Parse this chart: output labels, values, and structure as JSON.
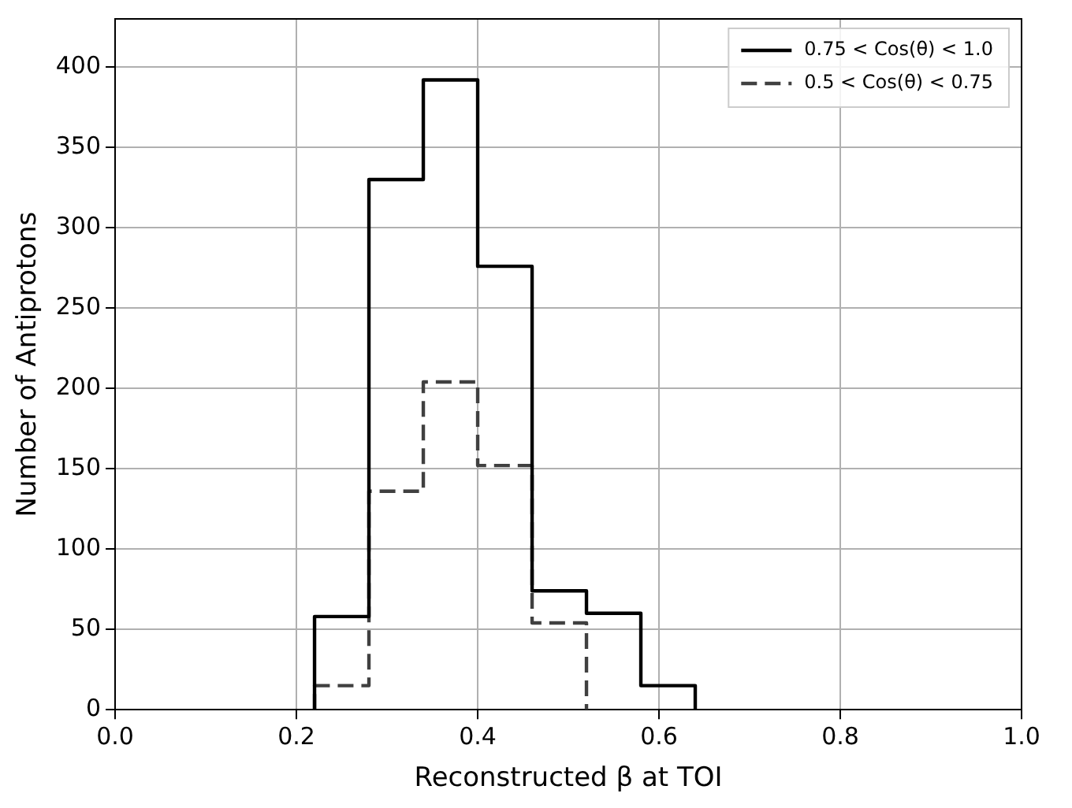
{
  "chart_data": {
    "type": "histogram",
    "xlabel": "Reconstructed β at TOI",
    "ylabel": "Number of Antiprotons",
    "bins": [
      0.22,
      0.28,
      0.34,
      0.4,
      0.46,
      0.52,
      0.58,
      0.64
    ],
    "series": [
      {
        "name": "0.75 < Cos(θ) < 1.0",
        "color": "#000000",
        "line_style": "solid",
        "values": [
          58,
          330,
          392,
          276,
          74,
          60,
          15
        ]
      },
      {
        "name": "0.5 < Cos(θ) < 0.75",
        "color": "#404040",
        "line_style": "dashed",
        "bins": [
          0.22,
          0.28,
          0.34,
          0.4,
          0.46,
          0.52
        ],
        "values": [
          15,
          136,
          204,
          152,
          54
        ]
      }
    ],
    "xlim": [
      0,
      1
    ],
    "xticks": [
      {
        "value": 0,
        "label": "0.0"
      },
      {
        "value": 0.2,
        "label": "0.2"
      },
      {
        "value": 0.4,
        "label": "0.4"
      },
      {
        "value": 0.6,
        "label": "0.6"
      },
      {
        "value": 0.8,
        "label": "0.8"
      },
      {
        "value": 1,
        "label": "1.0"
      }
    ],
    "ylim": [
      0,
      430
    ],
    "yticks": [
      0,
      50,
      100,
      150,
      200,
      250,
      300,
      350,
      400
    ],
    "grid": true,
    "legend": "top right"
  }
}
